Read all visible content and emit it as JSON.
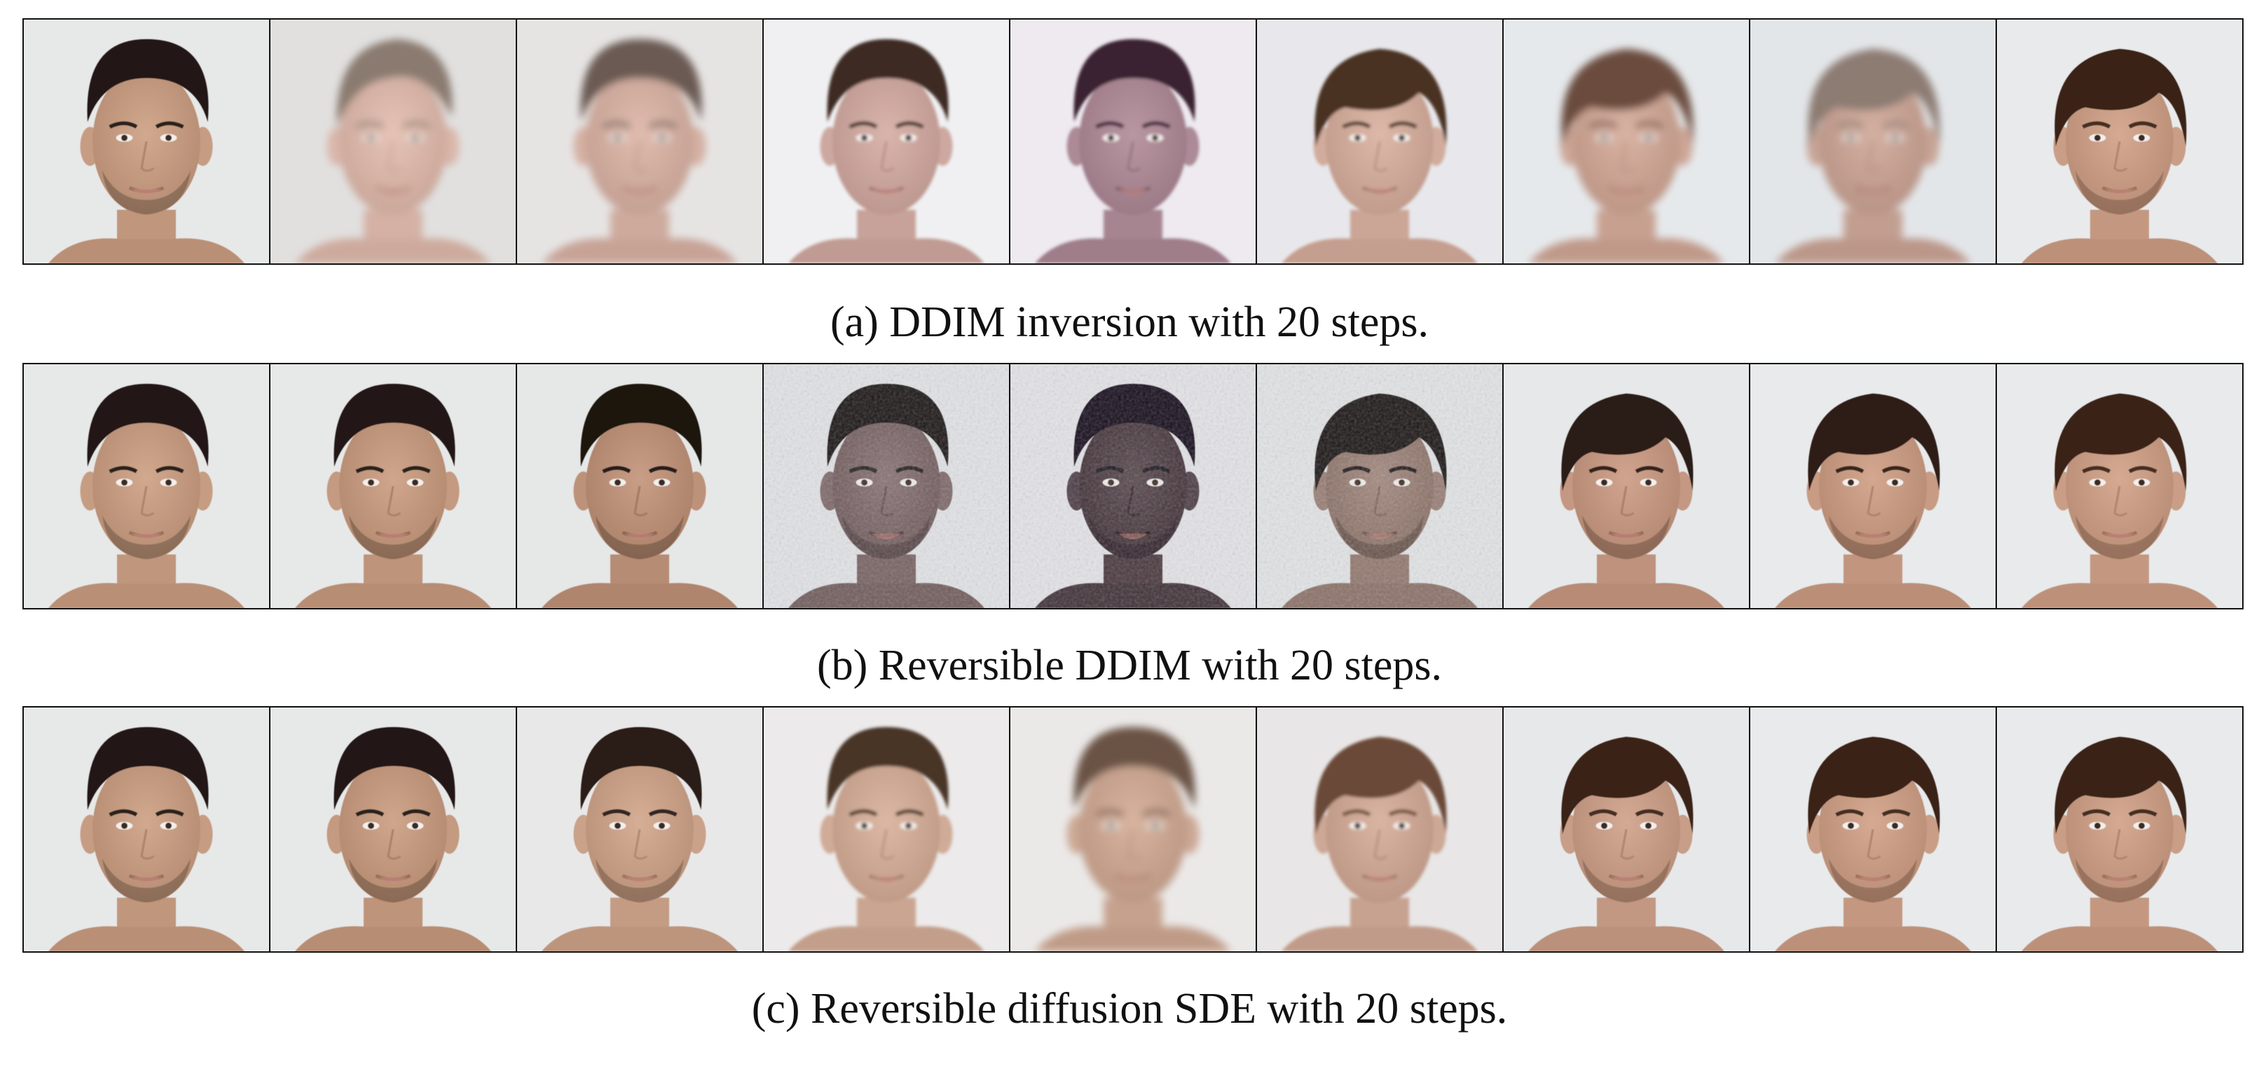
{
  "figure": {
    "panels": [
      {
        "id": "a",
        "caption": "(a) DDIM inversion with 20 steps.",
        "frames": [
          {
            "subject": "man-dark-hair",
            "bg": "#e7e8e8",
            "skin": "#d2a98f",
            "hair": "#201812",
            "style": "sharp"
          },
          {
            "subject": "woman-blonde",
            "bg": "#e1e0df",
            "skin": "#e6c3b6",
            "hair": "#8a7a70",
            "style": "blurry"
          },
          {
            "subject": "face-morph",
            "bg": "#e6e4e3",
            "skin": "#e0bcaf",
            "hair": "#6a5a52",
            "style": "blurry"
          },
          {
            "subject": "face-morph",
            "bg": "#f0f0f2",
            "skin": "#d9b4ac",
            "hair": "#3c2a24",
            "style": "smooth"
          },
          {
            "subject": "face-morph-purple",
            "bg": "#eeeaf0",
            "skin": "#b896a2",
            "hair": "#3a2030",
            "style": "smooth"
          },
          {
            "subject": "young-man-fringe",
            "bg": "#e8e8ec",
            "skin": "#ddb8a8",
            "hair": "#4a3224",
            "style": "smooth"
          },
          {
            "subject": "young-man-fringe",
            "bg": "#e6e9ec",
            "skin": "#d9b2a2",
            "hair": "#6b4c3c",
            "style": "blurry"
          },
          {
            "subject": "older-man",
            "bg": "#e3e6e9",
            "skin": "#d4b0a2",
            "hair": "#8c7c72",
            "style": "blurry"
          },
          {
            "subject": "man-fringe-beard",
            "bg": "#e8eaec",
            "skin": "#d6aa92",
            "hair": "#3a2418",
            "style": "sharp"
          }
        ]
      },
      {
        "id": "b",
        "caption": "(b) Reversible DDIM with 20 steps.",
        "frames": [
          {
            "subject": "man-dark-hair",
            "bg": "#e7e8e8",
            "skin": "#d2a98f",
            "hair": "#201812",
            "style": "sharp"
          },
          {
            "subject": "man-dark-hair",
            "bg": "#e7e8e8",
            "skin": "#d0a68c",
            "hair": "#201812",
            "style": "sharp"
          },
          {
            "subject": "man-dark-hair",
            "bg": "#e6e7e7",
            "skin": "#c99e86",
            "hair": "#1c1510",
            "style": "sharp"
          },
          {
            "subject": "man-noisy",
            "bg": "#e2e3e6",
            "skin": "#8a7476",
            "hair": "#1e1618",
            "style": "noisy"
          },
          {
            "subject": "man-noisy-dark",
            "bg": "#e4e4e8",
            "skin": "#5a4a50",
            "hair": "#14101a",
            "style": "noisy"
          },
          {
            "subject": "man-fringe-noisy",
            "bg": "#e2e4e6",
            "skin": "#a48a80",
            "hair": "#1a1412",
            "style": "noisy"
          },
          {
            "subject": "man-fringe-beard",
            "bg": "#e6e8ea",
            "skin": "#d0a48e",
            "hair": "#2a1a12",
            "style": "sharp"
          },
          {
            "subject": "man-fringe-beard",
            "bg": "#e8eaec",
            "skin": "#d4a890",
            "hair": "#2e1e14",
            "style": "sharp"
          },
          {
            "subject": "man-fringe-beard",
            "bg": "#e8eaec",
            "skin": "#d6aa92",
            "hair": "#3a2418",
            "style": "sharp"
          }
        ]
      },
      {
        "id": "c",
        "caption": "(c) Reversible diffusion SDE with 20 steps.",
        "frames": [
          {
            "subject": "man-dark-hair",
            "bg": "#e7e8e8",
            "skin": "#d2a98f",
            "hair": "#201812",
            "style": "sharp"
          },
          {
            "subject": "man-dark-hair",
            "bg": "#e7e8e8",
            "skin": "#d0a68c",
            "hair": "#201812",
            "style": "sharp"
          },
          {
            "subject": "man-dark-hair",
            "bg": "#e8e8e8",
            "skin": "#d6ae96",
            "hair": "#2a1e16",
            "style": "sharp"
          },
          {
            "subject": "face-morph-light",
            "bg": "#eceaea",
            "skin": "#dcb8a4",
            "hair": "#4a3428",
            "style": "smooth"
          },
          {
            "subject": "face-morph-light",
            "bg": "#ebe9e8",
            "skin": "#d8b4a0",
            "hair": "#6a5244",
            "style": "blurry"
          },
          {
            "subject": "young-man-fringe",
            "bg": "#e8e6e6",
            "skin": "#dab4a2",
            "hair": "#6a4a38",
            "style": "smooth"
          },
          {
            "subject": "man-fringe-beard",
            "bg": "#e6e8ea",
            "skin": "#d4aa94",
            "hair": "#3a2418",
            "style": "sharp"
          },
          {
            "subject": "man-fringe-beard",
            "bg": "#e8eaec",
            "skin": "#d6aa92",
            "hair": "#3a2418",
            "style": "sharp"
          },
          {
            "subject": "man-fringe-beard",
            "bg": "#e8eaec",
            "skin": "#d6aa92",
            "hair": "#3a2418",
            "style": "sharp"
          }
        ]
      }
    ]
  }
}
